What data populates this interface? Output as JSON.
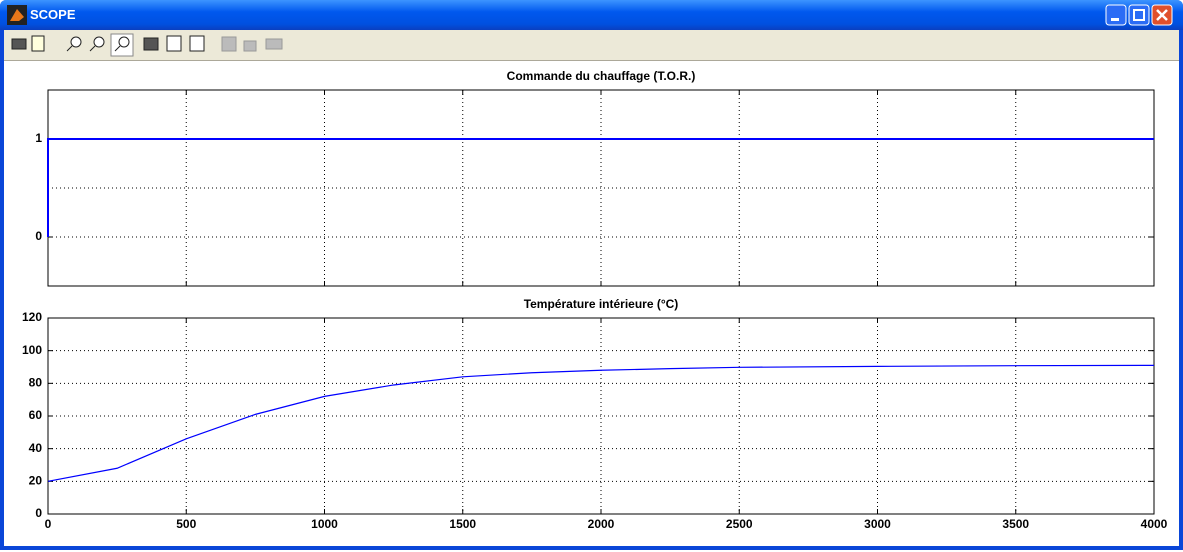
{
  "window": {
    "title": "SCOPE"
  },
  "chart_data": [
    {
      "type": "line",
      "title": "Commande du chauffage (T.O.R.)",
      "x": [
        0,
        0,
        4000
      ],
      "series": [
        {
          "color": "#0000ff",
          "values": [
            0,
            1,
            1
          ]
        }
      ],
      "xlim": [
        0,
        4000
      ],
      "xticks": [
        0,
        500,
        1000,
        1500,
        2000,
        2500,
        3000,
        3500,
        4000
      ],
      "xtick_labels": false,
      "ylim": [
        -0.5,
        1.5
      ],
      "yticks": [
        0,
        1
      ],
      "ygrid": [
        0,
        0.5,
        1
      ],
      "grid": true
    },
    {
      "type": "line",
      "title": "Température intérieure (°C)",
      "x": [
        0,
        250,
        500,
        750,
        1000,
        1250,
        1500,
        1750,
        2000,
        2250,
        2500,
        3000,
        3500,
        4000
      ],
      "series": [
        {
          "color": "#0000ff",
          "values": [
            20,
            28,
            46,
            61,
            72,
            79,
            84,
            86.5,
            88,
            89,
            89.8,
            90.4,
            90.8,
            91
          ]
        }
      ],
      "xlim": [
        0,
        4000
      ],
      "xticks": [
        0,
        500,
        1000,
        1500,
        2000,
        2500,
        3000,
        3500,
        4000
      ],
      "xtick_labels": true,
      "ylim": [
        0,
        120
      ],
      "yticks": [
        0,
        20,
        40,
        60,
        80,
        100,
        120
      ],
      "ygrid": [
        0,
        20,
        40,
        60,
        80,
        100,
        120
      ],
      "grid": true
    }
  ]
}
